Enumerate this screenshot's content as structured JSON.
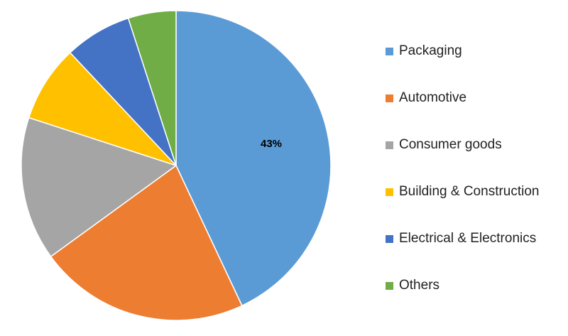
{
  "chart_data": {
    "type": "pie",
    "title": "",
    "slices": [
      {
        "label": "Packaging",
        "value": 43,
        "color": "#5B9BD5",
        "data_label": "43%"
      },
      {
        "label": "Automotive",
        "value": 22,
        "color": "#ED7D31"
      },
      {
        "label": "Consumer goods",
        "value": 15,
        "color": "#A5A5A5"
      },
      {
        "label": "Building & Construction",
        "value": 8,
        "color": "#FFC000"
      },
      {
        "label": "Electrical & Electronics",
        "value": 7,
        "color": "#4472C4"
      },
      {
        "label": "Others",
        "value": 5,
        "color": "#70AD47"
      }
    ],
    "legend_position": "right"
  }
}
